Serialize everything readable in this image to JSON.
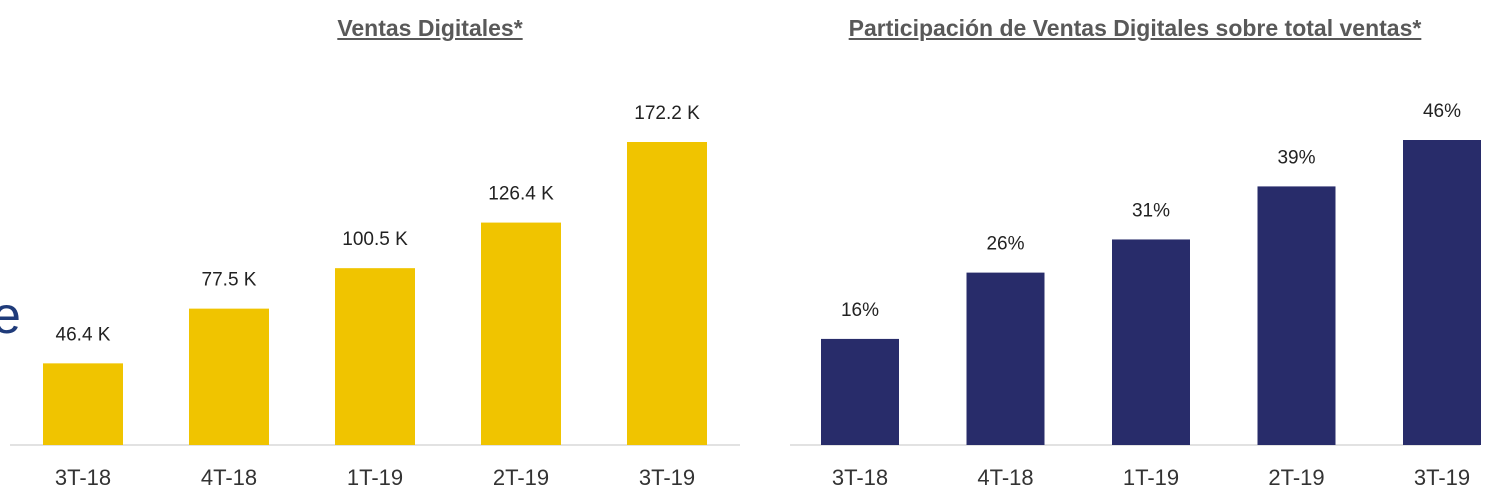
{
  "side_text": "e",
  "chart_data": [
    {
      "type": "bar",
      "title": "Ventas Digitales*",
      "categories": [
        "3T-18",
        "4T-18",
        "1T-19",
        "2T-19",
        "3T-19"
      ],
      "values": [
        46.4,
        77.5,
        100.5,
        126.4,
        172.2
      ],
      "value_labels": [
        "46.4 K",
        "77.5 K",
        "100.5 K",
        "126.4 K",
        "172.2 K"
      ],
      "color": "#f0c400"
    },
    {
      "type": "bar",
      "title": "Participación de Ventas Digitales sobre total ventas*",
      "categories": [
        "3T-18",
        "4T-18",
        "1T-19",
        "2T-19",
        "3T-19"
      ],
      "values": [
        16,
        26,
        31,
        39,
        46
      ],
      "value_labels": [
        "16%",
        "26%",
        "31%",
        "39%",
        "46%"
      ],
      "color": "#282c6a"
    }
  ]
}
